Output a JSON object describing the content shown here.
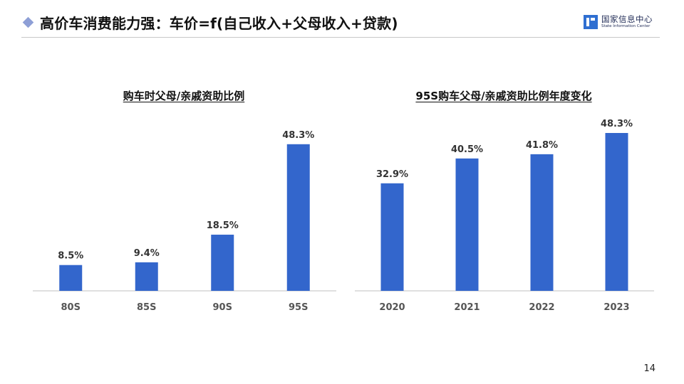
{
  "slide": {
    "title": "高价车消费能力强：车价=f(自己收入+父母收入+贷款)",
    "logo_cn": "国家信息中心",
    "logo_en": "State Information Center",
    "page_number": "14"
  },
  "colors": {
    "bar": "#3366cc",
    "accent": "#8e9fd6",
    "axis": "#bfbfbf"
  },
  "chart_data": [
    {
      "type": "bar",
      "title": "购车时父母/亲戚资助比例",
      "categories": [
        "80S",
        "85S",
        "90S",
        "95S"
      ],
      "values": [
        8.5,
        9.4,
        18.5,
        48.3
      ],
      "labels": [
        "8.5%",
        "9.4%",
        "18.5%",
        "48.3%"
      ],
      "ylim": [
        0,
        52
      ],
      "grid": false
    },
    {
      "type": "bar",
      "title": "95S购车父母/亲戚资助比例年度变化",
      "categories": [
        "2020",
        "2021",
        "2022",
        "2023"
      ],
      "values": [
        32.9,
        40.5,
        41.8,
        48.3
      ],
      "labels": [
        "32.9%",
        "40.5%",
        "41.8%",
        "48.3%"
      ],
      "ylim": [
        0,
        48.3
      ],
      "grid": false
    }
  ]
}
